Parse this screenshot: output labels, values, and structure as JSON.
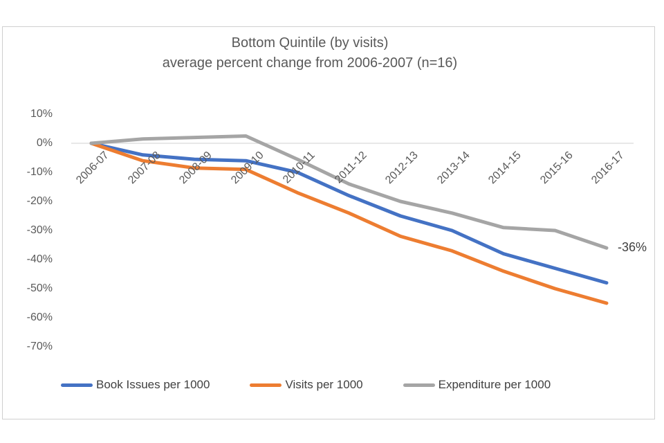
{
  "chart_data": {
    "type": "line",
    "title": "Bottom Quintile (by visits)",
    "subtitle": "average percent change from 2006-2007 (n=16)",
    "categories": [
      "2006-07",
      "2007-08",
      "2008-09",
      "2009-10",
      "2010-11",
      "2011-12",
      "2012-13",
      "2013-14",
      "2014-15",
      "2015-16",
      "2016-17"
    ],
    "series": [
      {
        "name": "Book Issues per 1000",
        "color": "#4472C4",
        "values": [
          0,
          -4,
          -5.5,
          -6,
          -10,
          -18,
          -25,
          -30,
          -38,
          -43,
          -48
        ]
      },
      {
        "name": "Visits per 1000",
        "color": "#ED7D31",
        "values": [
          0,
          -6,
          -8.5,
          -9,
          -17,
          -24,
          -32,
          -37,
          -44,
          -50,
          -55
        ]
      },
      {
        "name": "Expenditure per 1000",
        "color": "#A5A5A5",
        "values": [
          0,
          1.5,
          2,
          2.5,
          -5.5,
          -14,
          -20,
          -24,
          -29,
          -30,
          -36
        ]
      }
    ],
    "y_axis": {
      "ticks": [
        {
          "label": "10%",
          "value": 10
        },
        {
          "label": "0%",
          "value": 0
        },
        {
          "label": "-10%",
          "value": -10
        },
        {
          "label": "-20%",
          "value": -20
        },
        {
          "label": "-30%",
          "value": -30
        },
        {
          "label": "-40%",
          "value": -40
        },
        {
          "label": "-50%",
          "value": -50
        },
        {
          "label": "-60%",
          "value": -60
        },
        {
          "label": "-70%",
          "value": -70
        }
      ],
      "ylim": [
        -75,
        12
      ]
    },
    "grid": {
      "zero_line_only": true
    },
    "legend_position": "bottom",
    "annotation": {
      "text": "-36%",
      "series": "Expenditure per 1000",
      "category": "2016-17"
    }
  },
  "styles": {
    "text_color": "#595959",
    "annotation_color": "#404040",
    "frame_border_color": "#cfcfcf",
    "zero_line_color": "#d9d9d9"
  }
}
